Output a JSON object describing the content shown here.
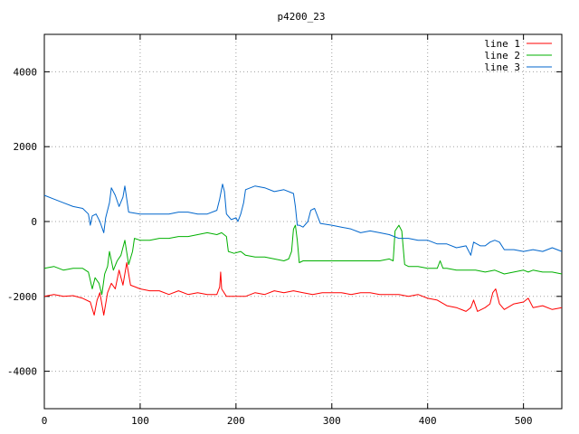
{
  "chart_data": {
    "type": "line",
    "title": "p4200_23",
    "xlabel": "",
    "ylabel": "",
    "xlim": [
      0,
      540
    ],
    "ylim": [
      -5000,
      5000
    ],
    "xticks": [
      0,
      100,
      200,
      300,
      400,
      500
    ],
    "yticks": [
      -4000,
      -2000,
      0,
      2000,
      4000
    ],
    "grid": true,
    "legend_position": "top-right",
    "series": [
      {
        "name": "line 1",
        "color": "#ff0000",
        "points": [
          [
            0,
            -2000
          ],
          [
            10,
            -1950
          ],
          [
            20,
            -2000
          ],
          [
            30,
            -1980
          ],
          [
            40,
            -2050
          ],
          [
            48,
            -2150
          ],
          [
            52,
            -2500
          ],
          [
            55,
            -2100
          ],
          [
            58,
            -1900
          ],
          [
            62,
            -2500
          ],
          [
            66,
            -1900
          ],
          [
            70,
            -1650
          ],
          [
            74,
            -1800
          ],
          [
            78,
            -1300
          ],
          [
            82,
            -1700
          ],
          [
            86,
            -1100
          ],
          [
            90,
            -1700
          ],
          [
            95,
            -1750
          ],
          [
            100,
            -1800
          ],
          [
            110,
            -1850
          ],
          [
            120,
            -1850
          ],
          [
            130,
            -1950
          ],
          [
            140,
            -1850
          ],
          [
            150,
            -1950
          ],
          [
            160,
            -1900
          ],
          [
            170,
            -1950
          ],
          [
            180,
            -1950
          ],
          [
            183,
            -1750
          ],
          [
            184,
            -1350
          ],
          [
            185,
            -1800
          ],
          [
            190,
            -2000
          ],
          [
            200,
            -2000
          ],
          [
            210,
            -2000
          ],
          [
            220,
            -1900
          ],
          [
            230,
            -1950
          ],
          [
            240,
            -1850
          ],
          [
            250,
            -1900
          ],
          [
            260,
            -1850
          ],
          [
            270,
            -1900
          ],
          [
            280,
            -1950
          ],
          [
            290,
            -1900
          ],
          [
            300,
            -1900
          ],
          [
            310,
            -1900
          ],
          [
            320,
            -1950
          ],
          [
            330,
            -1900
          ],
          [
            340,
            -1900
          ],
          [
            350,
            -1950
          ],
          [
            360,
            -1950
          ],
          [
            370,
            -1950
          ],
          [
            380,
            -2000
          ],
          [
            390,
            -1950
          ],
          [
            400,
            -2050
          ],
          [
            410,
            -2100
          ],
          [
            420,
            -2250
          ],
          [
            430,
            -2300
          ],
          [
            440,
            -2400
          ],
          [
            445,
            -2300
          ],
          [
            448,
            -2100
          ],
          [
            452,
            -2400
          ],
          [
            460,
            -2300
          ],
          [
            465,
            -2200
          ],
          [
            468,
            -1900
          ],
          [
            471,
            -1800
          ],
          [
            475,
            -2200
          ],
          [
            480,
            -2350
          ],
          [
            490,
            -2200
          ],
          [
            500,
            -2150
          ],
          [
            505,
            -2050
          ],
          [
            510,
            -2300
          ],
          [
            520,
            -2250
          ],
          [
            530,
            -2350
          ],
          [
            540,
            -2300
          ]
        ]
      },
      {
        "name": "line 2",
        "color": "#00b000",
        "points": [
          [
            0,
            -1250
          ],
          [
            10,
            -1200
          ],
          [
            20,
            -1300
          ],
          [
            30,
            -1250
          ],
          [
            40,
            -1250
          ],
          [
            46,
            -1350
          ],
          [
            50,
            -1800
          ],
          [
            53,
            -1500
          ],
          [
            57,
            -1650
          ],
          [
            60,
            -1950
          ],
          [
            63,
            -1400
          ],
          [
            66,
            -1200
          ],
          [
            68,
            -800
          ],
          [
            72,
            -1300
          ],
          [
            76,
            -1050
          ],
          [
            80,
            -900
          ],
          [
            84,
            -500
          ],
          [
            88,
            -1150
          ],
          [
            92,
            -800
          ],
          [
            94,
            -450
          ],
          [
            100,
            -500
          ],
          [
            110,
            -500
          ],
          [
            120,
            -450
          ],
          [
            130,
            -450
          ],
          [
            140,
            -400
          ],
          [
            150,
            -400
          ],
          [
            160,
            -350
          ],
          [
            170,
            -300
          ],
          [
            180,
            -350
          ],
          [
            185,
            -300
          ],
          [
            190,
            -400
          ],
          [
            192,
            -800
          ],
          [
            198,
            -850
          ],
          [
            205,
            -800
          ],
          [
            210,
            -900
          ],
          [
            220,
            -950
          ],
          [
            230,
            -950
          ],
          [
            240,
            -1000
          ],
          [
            250,
            -1050
          ],
          [
            255,
            -1000
          ],
          [
            258,
            -800
          ],
          [
            260,
            -200
          ],
          [
            262,
            -100
          ],
          [
            264,
            -500
          ],
          [
            266,
            -1100
          ],
          [
            270,
            -1050
          ],
          [
            280,
            -1050
          ],
          [
            290,
            -1050
          ],
          [
            300,
            -1050
          ],
          [
            310,
            -1050
          ],
          [
            320,
            -1050
          ],
          [
            330,
            -1050
          ],
          [
            340,
            -1050
          ],
          [
            350,
            -1050
          ],
          [
            360,
            -1000
          ],
          [
            364,
            -1050
          ],
          [
            366,
            -250
          ],
          [
            370,
            -100
          ],
          [
            373,
            -250
          ],
          [
            376,
            -1150
          ],
          [
            380,
            -1200
          ],
          [
            390,
            -1200
          ],
          [
            400,
            -1250
          ],
          [
            410,
            -1250
          ],
          [
            413,
            -1050
          ],
          [
            416,
            -1250
          ],
          [
            420,
            -1250
          ],
          [
            430,
            -1300
          ],
          [
            440,
            -1300
          ],
          [
            450,
            -1300
          ],
          [
            460,
            -1350
          ],
          [
            470,
            -1300
          ],
          [
            480,
            -1400
          ],
          [
            490,
            -1350
          ],
          [
            500,
            -1300
          ],
          [
            505,
            -1350
          ],
          [
            510,
            -1300
          ],
          [
            520,
            -1350
          ],
          [
            530,
            -1350
          ],
          [
            540,
            -1400
          ]
        ]
      },
      {
        "name": "line 3",
        "color": "#0066cc",
        "points": [
          [
            0,
            700
          ],
          [
            10,
            600
          ],
          [
            20,
            500
          ],
          [
            30,
            400
          ],
          [
            40,
            350
          ],
          [
            46,
            200
          ],
          [
            48,
            -100
          ],
          [
            50,
            150
          ],
          [
            54,
            200
          ],
          [
            58,
            0
          ],
          [
            62,
            -300
          ],
          [
            64,
            100
          ],
          [
            68,
            500
          ],
          [
            70,
            900
          ],
          [
            74,
            700
          ],
          [
            78,
            400
          ],
          [
            82,
            650
          ],
          [
            84,
            950
          ],
          [
            88,
            250
          ],
          [
            100,
            200
          ],
          [
            110,
            200
          ],
          [
            120,
            200
          ],
          [
            130,
            200
          ],
          [
            140,
            250
          ],
          [
            150,
            250
          ],
          [
            160,
            200
          ],
          [
            170,
            200
          ],
          [
            180,
            300
          ],
          [
            183,
            600
          ],
          [
            186,
            1000
          ],
          [
            188,
            800
          ],
          [
            190,
            200
          ],
          [
            195,
            50
          ],
          [
            200,
            100
          ],
          [
            202,
            0
          ],
          [
            205,
            200
          ],
          [
            208,
            500
          ],
          [
            210,
            850
          ],
          [
            220,
            950
          ],
          [
            230,
            900
          ],
          [
            240,
            800
          ],
          [
            250,
            850
          ],
          [
            260,
            750
          ],
          [
            262,
            400
          ],
          [
            264,
            -100
          ],
          [
            266,
            -100
          ],
          [
            270,
            -150
          ],
          [
            275,
            0
          ],
          [
            278,
            300
          ],
          [
            282,
            350
          ],
          [
            288,
            -50
          ],
          [
            300,
            -100
          ],
          [
            310,
            -150
          ],
          [
            320,
            -200
          ],
          [
            330,
            -300
          ],
          [
            340,
            -250
          ],
          [
            350,
            -300
          ],
          [
            360,
            -350
          ],
          [
            370,
            -450
          ],
          [
            380,
            -450
          ],
          [
            390,
            -500
          ],
          [
            400,
            -500
          ],
          [
            410,
            -600
          ],
          [
            420,
            -600
          ],
          [
            430,
            -700
          ],
          [
            440,
            -650
          ],
          [
            445,
            -900
          ],
          [
            448,
            -550
          ],
          [
            455,
            -650
          ],
          [
            460,
            -650
          ],
          [
            465,
            -550
          ],
          [
            470,
            -500
          ],
          [
            475,
            -550
          ],
          [
            480,
            -750
          ],
          [
            490,
            -750
          ],
          [
            500,
            -800
          ],
          [
            510,
            -750
          ],
          [
            520,
            -800
          ],
          [
            530,
            -700
          ],
          [
            540,
            -800
          ]
        ]
      }
    ]
  }
}
